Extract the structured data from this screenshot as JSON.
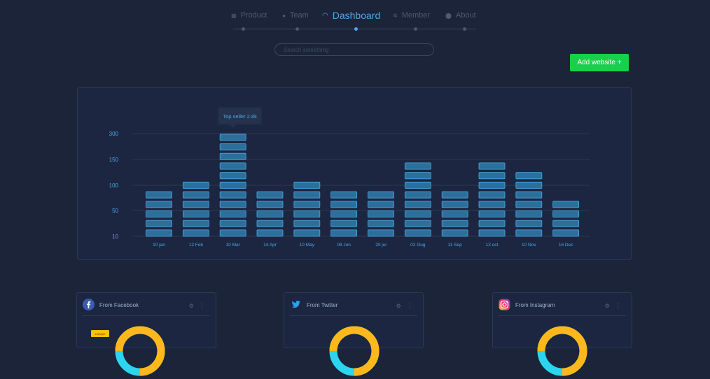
{
  "nav": {
    "items": [
      {
        "label": "Product",
        "icon": "product-icon",
        "active": false
      },
      {
        "label": "Team",
        "icon": "team-icon",
        "active": false
      },
      {
        "label": "Dashboard",
        "icon": "gauge-icon",
        "active": true
      },
      {
        "label": "Member",
        "icon": "member-icon",
        "active": false
      },
      {
        "label": "About",
        "icon": "about-icon",
        "active": false
      }
    ]
  },
  "search": {
    "placeholder": "Search something"
  },
  "actions": {
    "add_website_label": "Add website +"
  },
  "colors": {
    "background": "#1b2438",
    "accent": "#4aa8e8",
    "success": "#17d14c",
    "bar_fill": "#2d6f9b",
    "bar_stroke": "#4aa8e8",
    "donut_yellow": "#ffb81c",
    "donut_cyan": "#2bd5f0"
  },
  "chart_data": {
    "type": "bar",
    "categories": [
      "10 jan",
      "12 Feb",
      "10 Mar",
      "14 Apr",
      "10 May",
      "08 Jun",
      "20 jul",
      "02 Oug",
      "11 Sep",
      "12 oct",
      "10 Nov",
      "16 Dec"
    ],
    "values": [
      85,
      105,
      300,
      88,
      105,
      85,
      87,
      140,
      85,
      140,
      120,
      65
    ],
    "segments": [
      5,
      6,
      11,
      5,
      6,
      5,
      5,
      8,
      5,
      8,
      7,
      4
    ],
    "y_ticks": [
      "10",
      "50",
      "100",
      "150",
      "300"
    ],
    "tooltip": {
      "category": "10 Mar",
      "text": "Top seller 2.8k"
    },
    "grid": true
  },
  "cards": [
    {
      "title": "From Facebook",
      "icon": "facebook-icon",
      "tag": "Lifestyle",
      "yellow_pct": 0.75
    },
    {
      "title": "From Twitter",
      "icon": "twitter-icon",
      "yellow_pct": 0.75
    },
    {
      "title": "From Instagram",
      "icon": "instagram-icon",
      "yellow_pct": 0.75
    }
  ],
  "card_actions": {
    "icons": "⚙ ⋮"
  }
}
